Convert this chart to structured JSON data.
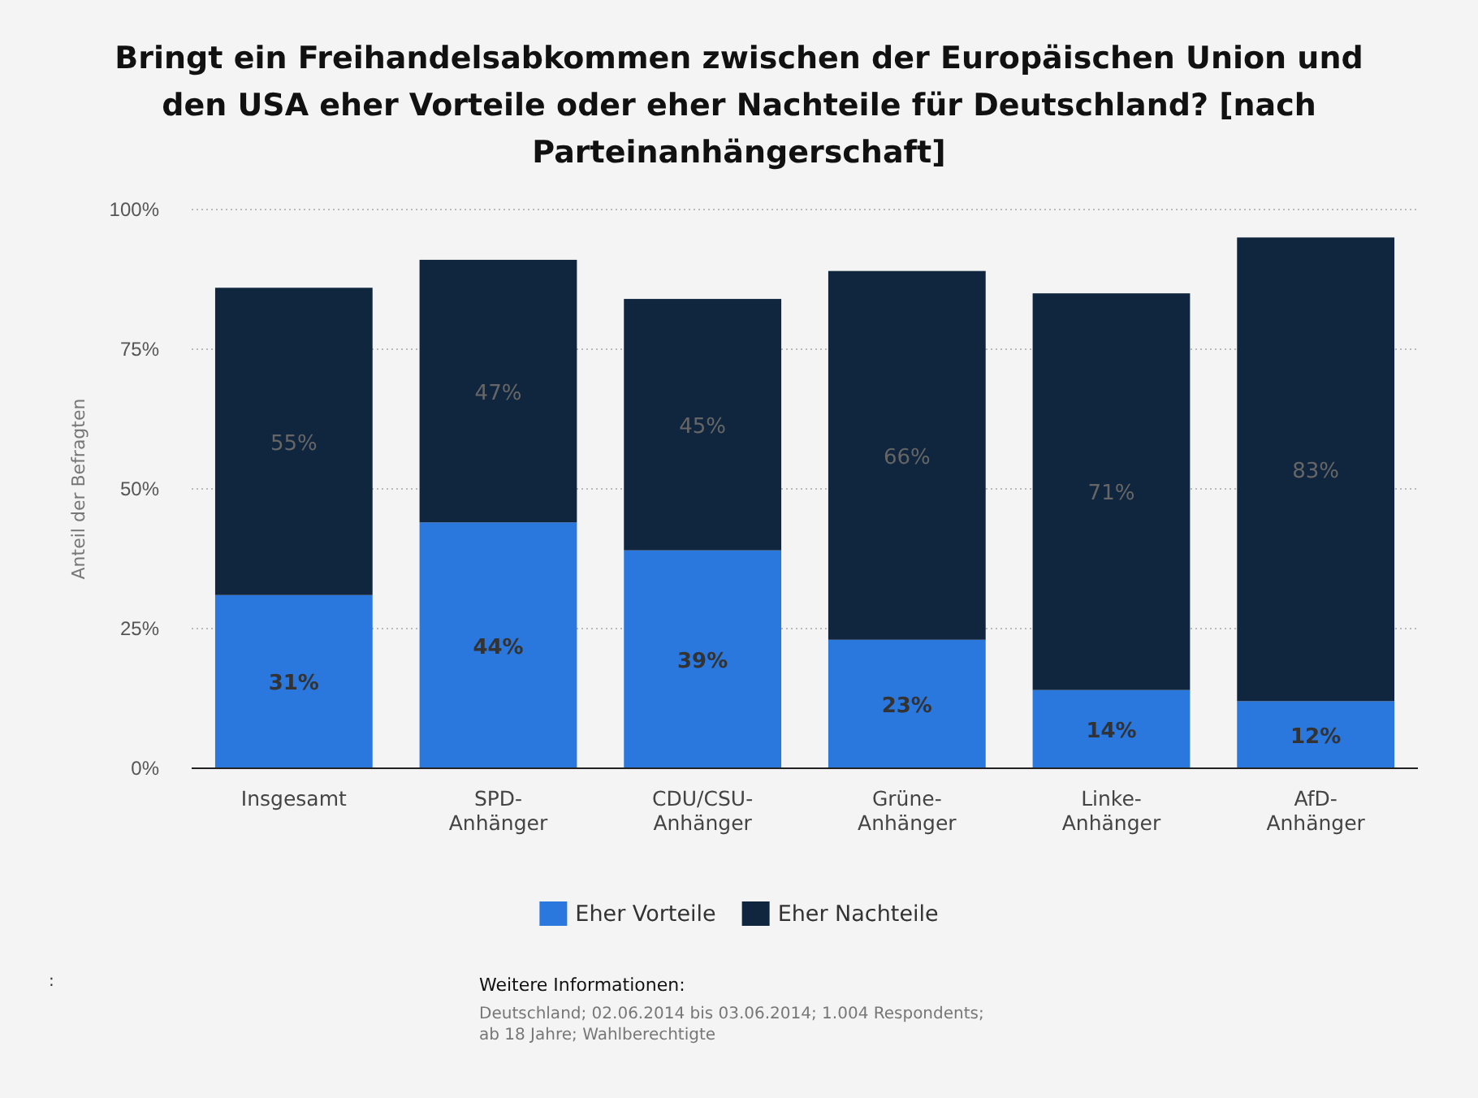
{
  "chart_data": {
    "type": "bar",
    "title": "Bringt ein Freihandelsabkommen zwischen der Europäischen Union und den USA eher Vorteile oder eher Nachteile für Deutschland? [nach Parteinanhängerschaft]",
    "ylabel": "Anteil der Befragten",
    "categories": [
      "Insgesamt",
      "SPD-Anhänger",
      "CDU/CSU-Anhänger",
      "Grüne-Anhänger",
      "Linke-Anhänger",
      "AfD-Anhänger"
    ],
    "series": [
      {
        "name": "Eher Vorteile",
        "color": "#2a77de",
        "values": [
          31,
          44,
          39,
          23,
          14,
          12
        ],
        "value_labels": [
          "31%",
          "44%",
          "39%",
          "23%",
          "14%",
          "12%"
        ]
      },
      {
        "name": "Eher Nachteile",
        "color": "#10263e",
        "values": [
          55,
          47,
          45,
          66,
          71,
          83
        ],
        "value_labels": [
          "55%",
          "47%",
          "45%",
          "66%",
          "71%",
          "83%"
        ]
      }
    ],
    "stacked": true,
    "ylim": [
      0,
      100
    ],
    "yticks": [
      {
        "value": 0,
        "label": "0%"
      },
      {
        "value": 25,
        "label": "25%"
      },
      {
        "value": 50,
        "label": "50%"
      },
      {
        "value": 75,
        "label": "75%"
      },
      {
        "value": 100,
        "label": "100%"
      }
    ],
    "grid": "y",
    "legend": "bottom",
    "annotations": [
      ":",
      "Weitere Informationen:",
      "Deutschland; 02.06.2014 bis 03.06.2014; 1.004 Respondents; ab 18 Jahre; Wahlberechtigte"
    ]
  }
}
